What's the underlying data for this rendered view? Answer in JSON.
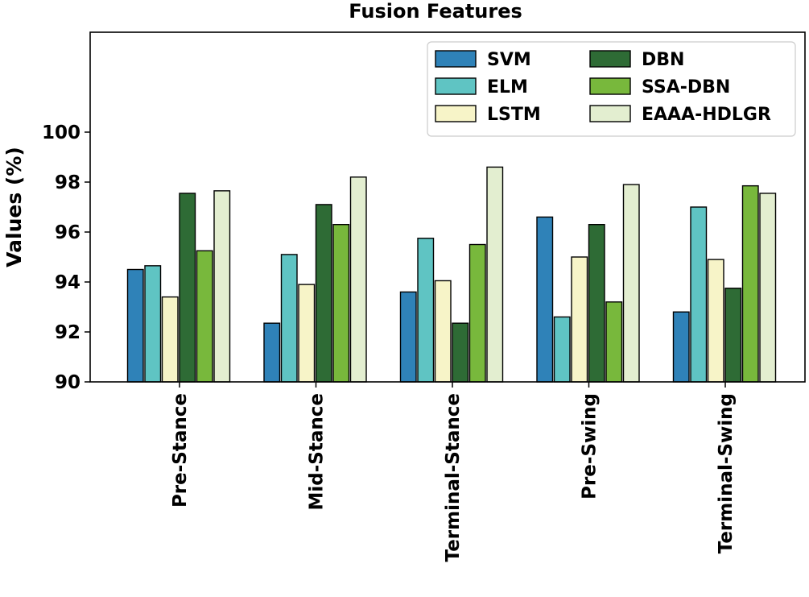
{
  "chart_data": {
    "type": "bar",
    "title": "Fusion Features",
    "xlabel": "",
    "ylabel": "Values (%)",
    "ylim": [
      90,
      104
    ],
    "yticks": [
      90,
      92,
      94,
      96,
      98,
      100
    ],
    "legend_position": "top-right",
    "categories": [
      "Pre-Stance",
      "Mid-Stance",
      "Terminal-Stance",
      "Pre-Swing",
      "Terminal-Swing"
    ],
    "series": [
      {
        "name": "SVM",
        "color": "#2f82b8",
        "values": [
          94.5,
          92.35,
          93.6,
          96.6,
          92.8
        ]
      },
      {
        "name": "ELM",
        "color": "#5fc4c3",
        "values": [
          94.65,
          95.1,
          95.75,
          92.6,
          97.0
        ]
      },
      {
        "name": "LSTM",
        "color": "#f7f4c8",
        "values": [
          93.4,
          93.9,
          94.05,
          95.0,
          94.9
        ]
      },
      {
        "name": "DBN",
        "color": "#2e6b35",
        "values": [
          97.55,
          97.1,
          92.35,
          96.3,
          93.75
        ]
      },
      {
        "name": "SSA-DBN",
        "color": "#78b83c",
        "values": [
          95.25,
          96.3,
          95.5,
          93.2,
          97.85
        ]
      },
      {
        "name": "EAAA-HDLGR",
        "color": "#e3eed0",
        "values": [
          97.65,
          98.2,
          98.6,
          97.9,
          97.55
        ]
      }
    ]
  }
}
